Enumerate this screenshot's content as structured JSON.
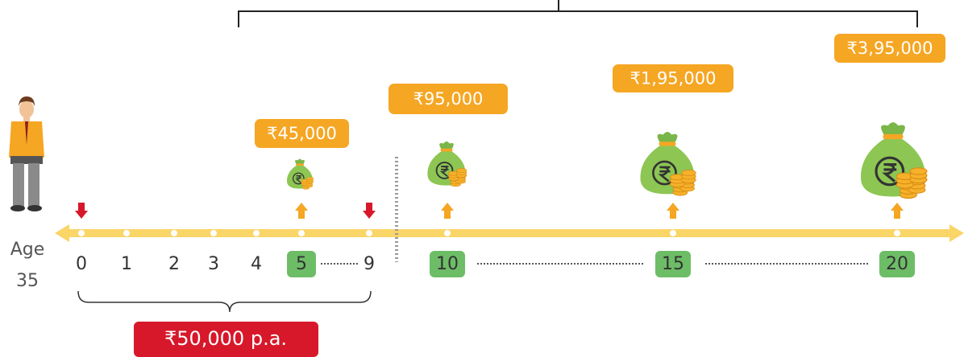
{
  "age": {
    "label": "Age",
    "value": "35"
  },
  "timeline": {
    "ticks": [
      "0",
      "1",
      "2",
      "3",
      "4",
      "5",
      "9",
      "10",
      "15",
      "20"
    ]
  },
  "payouts": [
    "₹45,000",
    "₹95,000",
    "₹1,95,000",
    "₹3,95,000"
  ],
  "premium": "₹50,000 p.a."
}
